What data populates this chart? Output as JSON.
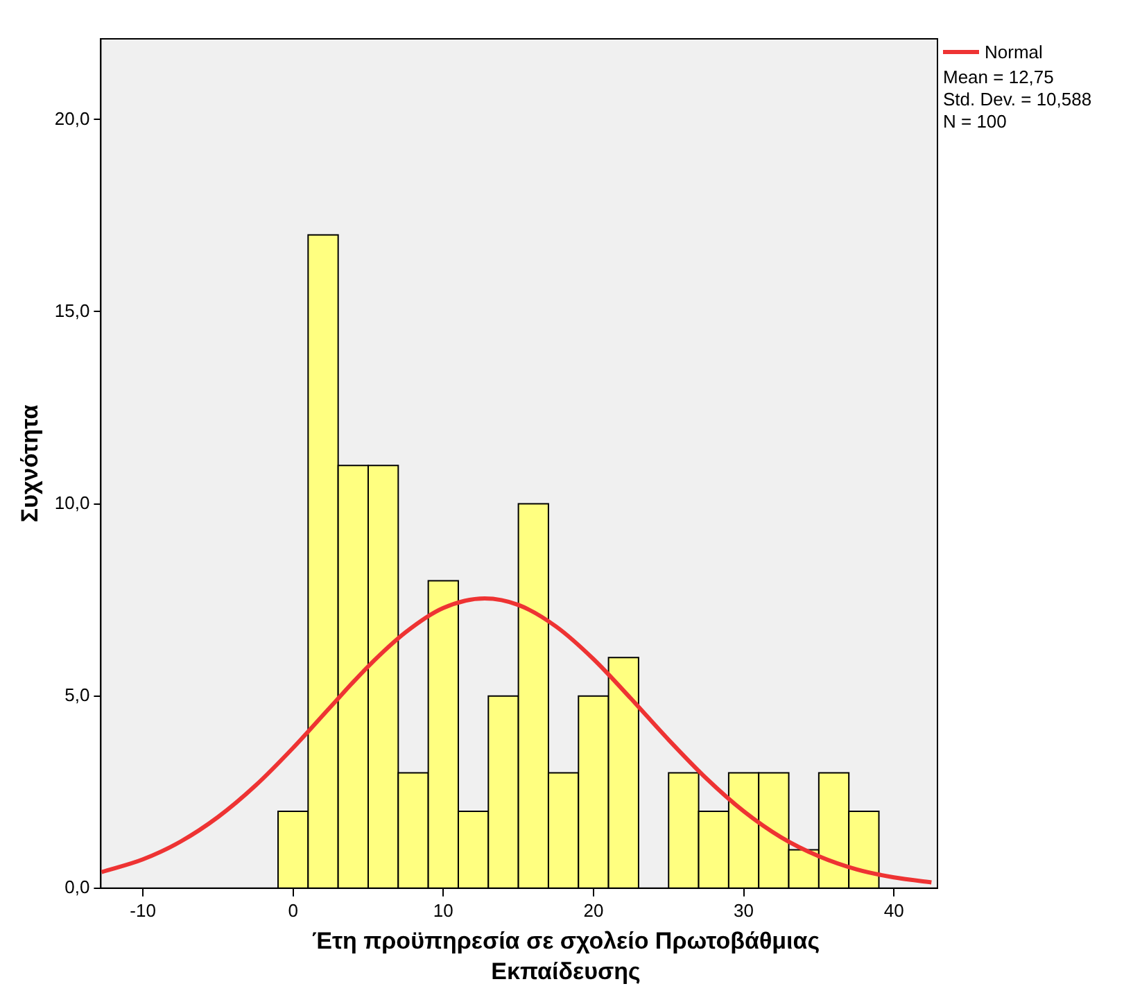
{
  "chart_data": {
    "type": "histogram",
    "xlabel": "Έτη προϋπηρεσία σε σχολείο Πρωτοβάθμιας Εκπαίδευσης",
    "ylabel": "Συχνότητα",
    "bins": [
      -1,
      1,
      3,
      5,
      7,
      9,
      11,
      13,
      15,
      17,
      19,
      21,
      23,
      25,
      27,
      29,
      31,
      33,
      35,
      37,
      39
    ],
    "values": [
      2,
      17,
      11,
      11,
      3,
      8,
      2,
      5,
      10,
      3,
      5,
      6,
      0,
      3,
      2,
      3,
      3,
      1,
      3,
      2
    ],
    "color": "#ffff80",
    "series": [
      {
        "name": "Normal",
        "type": "line",
        "color": "#ee3333",
        "marker": "none",
        "line_style": "solid",
        "x": [
          -12.75,
          -10,
          -7.5,
          -5,
          -2.5,
          0,
          2.5,
          5,
          7.5,
          10,
          12.75,
          15,
          17.5,
          20,
          22.5,
          25,
          27.5,
          30,
          32.5,
          35,
          37.5,
          40,
          42.5
        ],
        "values": [
          0.42,
          0.75,
          1.21,
          1.85,
          2.67,
          3.65,
          4.72,
          5.77,
          6.66,
          7.29,
          7.54,
          7.37,
          6.81,
          5.96,
          4.93,
          3.86,
          2.86,
          2.0,
          1.32,
          0.83,
          0.49,
          0.28,
          0.15
        ]
      }
    ],
    "xlim": [
      -12.8,
      42.9
    ],
    "ylim": [
      0,
      22.1
    ],
    "xticks": [
      -10,
      0,
      10,
      20,
      30,
      40
    ],
    "yticks": [
      {
        "value": 0,
        "label": "0,0"
      },
      {
        "value": 5,
        "label": "5,0"
      },
      {
        "value": 10,
        "label": "10,0"
      },
      {
        "value": 15,
        "label": "15,0"
      },
      {
        "value": 20,
        "label": "20,0"
      }
    ],
    "grid": false,
    "legend": "top right",
    "annotations": [
      "Mean = 12,75",
      "Std. Dev. = 10,588",
      "N = 100"
    ]
  }
}
